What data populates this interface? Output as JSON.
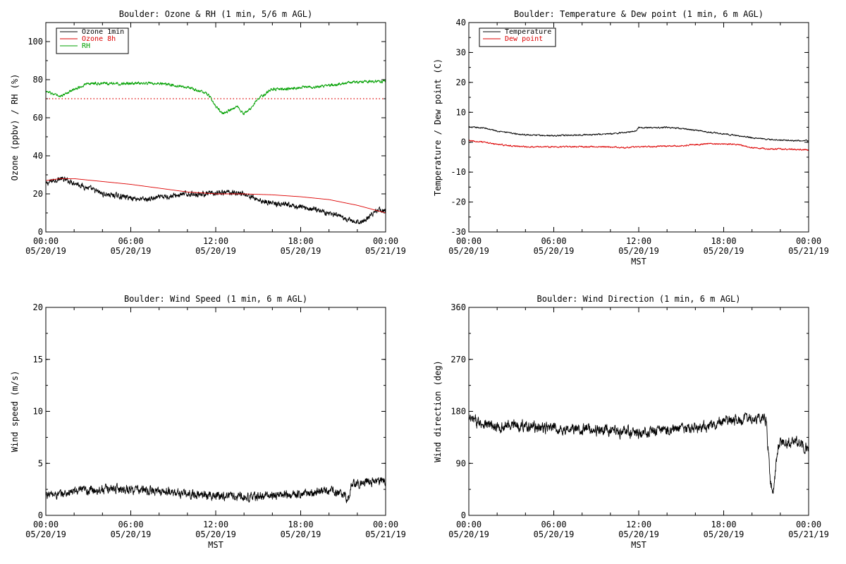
{
  "colors": {
    "black": "#000000",
    "red": "#dd0000",
    "green": "#00a000",
    "background": "#ffffff"
  },
  "chart_data": [
    {
      "id": "ozone_rh",
      "type": "line",
      "title": "Boulder: Ozone & RH (1 min, 5/6 m AGL)",
      "ylabel": "Ozone (ppbv) / RH (%)",
      "xlabel": "",
      "ylim": [
        0,
        110
      ],
      "yticks": [
        0,
        20,
        40,
        60,
        80,
        100
      ],
      "xlim": [
        0,
        24
      ],
      "xticks": [
        {
          "time": "00:00",
          "date": "05/20/19"
        },
        {
          "time": "06:00",
          "date": "05/20/19"
        },
        {
          "time": "12:00",
          "date": "05/20/19"
        },
        {
          "time": "18:00",
          "date": "05/20/19"
        },
        {
          "time": "00:00",
          "date": "05/21/19"
        }
      ],
      "legend": {
        "placement": "top-left",
        "entries": [
          "Ozone 1min",
          "Ozone 8h",
          "RH"
        ]
      },
      "reference_lines": [
        {
          "y": 70,
          "color": "red",
          "style": "dotted"
        }
      ],
      "series": [
        {
          "name": "Ozone 1min",
          "color": "black",
          "noise": 1.5,
          "x": [
            0,
            0.5,
            1,
            1.5,
            2,
            3,
            4,
            5,
            6,
            7,
            8,
            9,
            10,
            11,
            12,
            13,
            14,
            15,
            16,
            17,
            18,
            19,
            20,
            21,
            21.5,
            22,
            22.5,
            23,
            23.5,
            24
          ],
          "y": [
            25,
            27,
            28,
            27,
            26,
            23,
            20,
            19,
            18,
            17,
            18,
            19,
            20,
            20,
            20,
            21,
            20,
            17,
            15,
            14,
            13,
            12,
            10,
            7,
            6,
            5,
            6,
            9,
            12,
            11
          ]
        },
        {
          "name": "Ozone 8h",
          "color": "red",
          "noise": 0,
          "x": [
            0,
            1,
            2,
            4,
            6,
            8,
            10,
            12,
            14,
            16,
            18,
            20,
            21,
            22,
            23,
            24
          ],
          "y": [
            27,
            28,
            28,
            26.5,
            25,
            23,
            21,
            20,
            20,
            19.5,
            18.5,
            17,
            15.5,
            14,
            12,
            10
          ]
        },
        {
          "name": "RH",
          "color": "green",
          "noise": 0.8,
          "x": [
            0,
            1,
            2,
            3,
            4,
            5,
            6,
            7,
            8,
            9,
            10,
            11,
            11.5,
            12,
            12.5,
            13,
            13.5,
            14,
            14.5,
            15,
            16,
            17,
            18,
            19,
            20,
            21,
            22,
            23,
            24
          ],
          "y": [
            74,
            71,
            75,
            78,
            78,
            78,
            78,
            78,
            78,
            77,
            76,
            74,
            72,
            66,
            62,
            64,
            66,
            62,
            65,
            70,
            75,
            75,
            76,
            76,
            77,
            78,
            79,
            79,
            79
          ]
        }
      ]
    },
    {
      "id": "temp_dew",
      "type": "line",
      "title": "Boulder: Temperature & Dew point (1 min, 6 m AGL)",
      "ylabel": "Temperature / Dew point (C)",
      "xlabel": "MST",
      "ylim": [
        -30,
        40
      ],
      "yticks": [
        -30,
        -20,
        -10,
        0,
        10,
        20,
        30,
        40
      ],
      "xlim": [
        0,
        24
      ],
      "xticks": [
        {
          "time": "00:00",
          "date": "05/20/19"
        },
        {
          "time": "06:00",
          "date": "05/20/19"
        },
        {
          "time": "12:00",
          "date": "05/20/19"
        },
        {
          "time": "18:00",
          "date": "05/20/19"
        },
        {
          "time": "00:00",
          "date": "05/21/19"
        }
      ],
      "legend": {
        "placement": "top-left",
        "entries": [
          "Temperature",
          "Dew point"
        ]
      },
      "reference_lines": [],
      "series": [
        {
          "name": "Temperature",
          "color": "black",
          "noise": 0.25,
          "x": [
            0,
            1,
            2,
            3,
            4,
            5,
            6,
            7,
            8,
            9,
            10,
            11,
            11.8,
            12,
            13,
            14,
            15,
            16,
            17,
            18,
            19,
            20,
            21,
            22,
            23,
            24
          ],
          "y": [
            5,
            4.8,
            3.8,
            3,
            2.5,
            2.3,
            2.2,
            2.3,
            2.5,
            2.6,
            2.8,
            3.2,
            3.8,
            5,
            4.8,
            5,
            4.6,
            4,
            3.3,
            2.8,
            2.2,
            1.5,
            1,
            0.7,
            0.5,
            0.5
          ]
        },
        {
          "name": "Dew point",
          "color": "red",
          "noise": 0.25,
          "x": [
            0,
            1,
            2,
            3,
            4,
            5,
            6,
            7,
            8,
            9,
            10,
            11,
            12,
            13,
            14,
            15,
            16,
            17,
            18,
            19,
            20,
            21,
            22,
            23,
            24
          ],
          "y": [
            0.5,
            0,
            -0.7,
            -1.2,
            -1.5,
            -1.5,
            -1.6,
            -1.5,
            -1.5,
            -1.5,
            -1.6,
            -1.8,
            -1.5,
            -1.5,
            -1.3,
            -1.2,
            -0.8,
            -0.5,
            -0.5,
            -0.8,
            -1.8,
            -2.2,
            -2.3,
            -2.4,
            -2.6
          ]
        }
      ]
    },
    {
      "id": "wind_speed",
      "type": "line",
      "title": "Boulder: Wind Speed (1 min, 6 m AGL)",
      "ylabel": "Wind speed (m/s)",
      "xlabel": "MST",
      "ylim": [
        0,
        20
      ],
      "yticks": [
        0,
        5,
        10,
        15,
        20
      ],
      "xlim": [
        0,
        24
      ],
      "xticks": [
        {
          "time": "00:00",
          "date": "05/20/19"
        },
        {
          "time": "06:00",
          "date": "05/20/19"
        },
        {
          "time": "12:00",
          "date": "05/20/19"
        },
        {
          "time": "18:00",
          "date": "05/20/19"
        },
        {
          "time": "00:00",
          "date": "05/21/19"
        }
      ],
      "legend": null,
      "reference_lines": [],
      "series": [
        {
          "name": "",
          "color": "black",
          "noise": 0.45,
          "x": [
            0,
            1,
            2,
            3,
            4,
            5,
            6,
            7,
            8,
            9,
            10,
            11,
            12,
            13,
            14,
            15,
            16,
            17,
            18,
            19,
            20,
            21,
            21.4,
            21.6,
            22,
            23,
            24
          ],
          "y": [
            2,
            2,
            2.3,
            2.4,
            2.5,
            2.6,
            2.5,
            2.4,
            2.3,
            2.2,
            2.0,
            2.0,
            1.9,
            1.9,
            1.8,
            1.8,
            1.9,
            2.0,
            2.1,
            2.2,
            2.4,
            2.0,
            1.5,
            3.2,
            3.0,
            3.2,
            3.3
          ]
        }
      ]
    },
    {
      "id": "wind_dir",
      "type": "line",
      "title": "Boulder: Wind Direction (1 min, 6 m AGL)",
      "ylabel": "Wind direction (deg)",
      "xlabel": "MST",
      "ylim": [
        0,
        360
      ],
      "yticks": [
        0,
        90,
        180,
        270,
        360
      ],
      "xlim": [
        0,
        24
      ],
      "xticks": [
        {
          "time": "00:00",
          "date": "05/20/19"
        },
        {
          "time": "06:00",
          "date": "05/20/19"
        },
        {
          "time": "12:00",
          "date": "05/20/19"
        },
        {
          "time": "18:00",
          "date": "05/20/19"
        },
        {
          "time": "00:00",
          "date": "05/21/19"
        }
      ],
      "legend": null,
      "reference_lines": [],
      "series": [
        {
          "name": "",
          "color": "black",
          "noise": 10,
          "x": [
            0,
            1,
            2,
            3,
            4,
            5,
            6,
            7,
            8,
            9,
            10,
            11,
            12,
            13,
            14,
            15,
            16,
            17,
            18,
            19,
            20,
            20.8,
            21,
            21.3,
            21.5,
            21.8,
            22,
            23,
            24
          ],
          "y": [
            165,
            160,
            150,
            158,
            155,
            152,
            150,
            148,
            150,
            148,
            145,
            145,
            142,
            145,
            148,
            150,
            152,
            155,
            160,
            165,
            168,
            170,
            165,
            60,
            40,
            110,
            125,
            128,
            115
          ]
        }
      ]
    }
  ]
}
